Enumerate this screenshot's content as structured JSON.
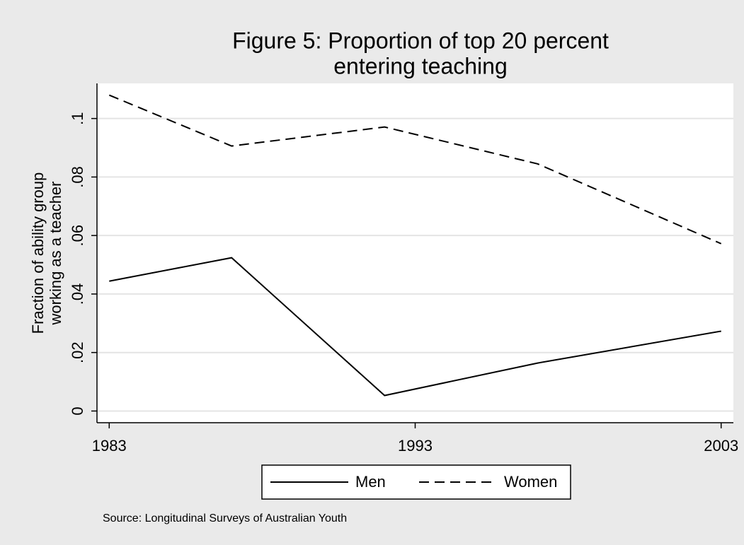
{
  "chart_data": {
    "type": "line",
    "title": [
      "Figure 5: Proportion of top 20 percent",
      "entering teaching"
    ],
    "y_label": [
      "Fraction of ability group",
      "working as a teacher"
    ],
    "source": "Source: Longitudinal Surveys of Australian Youth",
    "x": [
      1983,
      1987,
      1992,
      1997,
      2003
    ],
    "series": [
      {
        "name": "Men",
        "color": "#000000",
        "dash": "solid",
        "values": [
          0.0444,
          0.0524,
          0.0053,
          0.0164,
          0.0273
        ]
      },
      {
        "name": "Women",
        "color": "#000000",
        "dash": "dashed",
        "values": [
          0.108,
          0.0906,
          0.0971,
          0.0845,
          0.0572
        ]
      }
    ],
    "xlim": [
      1982.6,
      2003.4
    ],
    "xticks": [
      1983,
      1993,
      2003
    ],
    "ylim": [
      -0.004,
      0.112
    ],
    "yticks": [
      0,
      {
        "value": 0.02,
        "label": ".02"
      },
      {
        "value": 0.04,
        "label": ".04"
      },
      {
        "value": 0.06,
        "label": ".06"
      },
      {
        "value": 0.08,
        "label": ".08"
      },
      {
        "value": 0.1,
        "label": ".1"
      }
    ],
    "grid": true,
    "legend": "bottom"
  }
}
